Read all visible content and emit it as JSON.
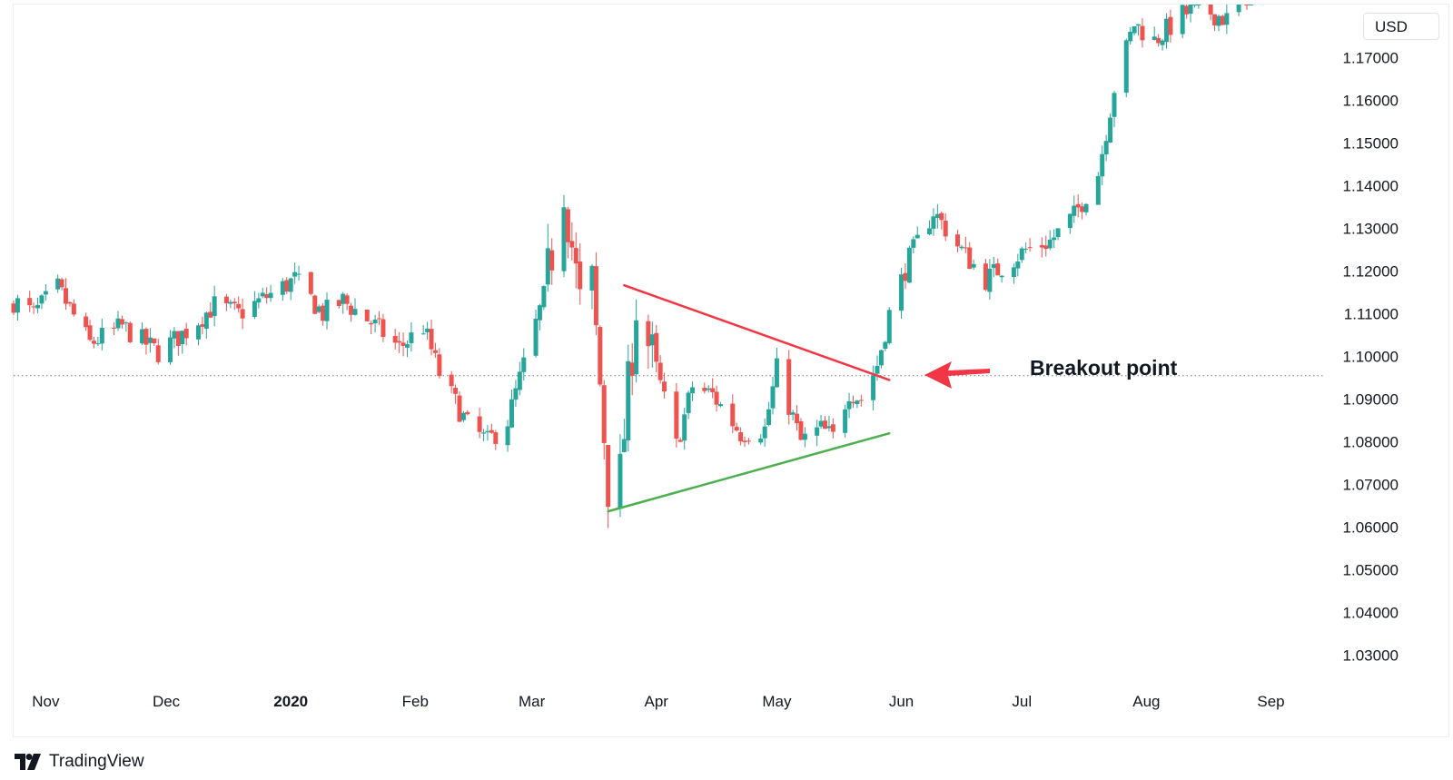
{
  "chart_data": {
    "type": "candlestick",
    "currency": "USD",
    "x_tick_labels": [
      "Nov",
      "Dec",
      "2020",
      "Feb",
      "Mar",
      "Apr",
      "May",
      "Jun",
      "Jul",
      "Aug",
      "Sep"
    ],
    "x_tick_bold": [
      false,
      false,
      true,
      false,
      false,
      false,
      false,
      false,
      false,
      false,
      false
    ],
    "y_tick_labels": [
      "1.17000",
      "1.16000",
      "1.15000",
      "1.14000",
      "1.13000",
      "1.12000",
      "1.11000",
      "1.10000",
      "1.09000",
      "1.08000",
      "1.07000",
      "1.06000",
      "1.05000",
      "1.04000",
      "1.03000"
    ],
    "y_ticks": [
      1.17,
      1.16,
      1.15,
      1.14,
      1.13,
      1.12,
      1.11,
      1.1,
      1.09,
      1.08,
      1.07,
      1.06,
      1.05,
      1.04,
      1.03
    ],
    "ylim": [
      1.0235,
      1.1825
    ],
    "price_line": 1.0955,
    "close_path": [
      [
        "2019-10-24",
        1.113
      ],
      [
        "2019-10-29",
        1.11
      ],
      [
        "2019-11-04",
        1.116
      ],
      [
        "2019-11-12",
        1.103
      ],
      [
        "2019-11-20",
        1.107
      ],
      [
        "2019-11-29",
        1.101
      ],
      [
        "2019-12-06",
        1.106
      ],
      [
        "2019-12-13",
        1.112
      ],
      [
        "2019-12-19",
        1.11
      ],
      [
        "2019-12-26",
        1.114
      ],
      [
        "2020-01-02",
        1.118
      ],
      [
        "2020-01-09",
        1.11
      ],
      [
        "2020-01-14",
        1.113
      ],
      [
        "2020-01-21",
        1.108
      ],
      [
        "2020-01-28",
        1.102
      ],
      [
        "2020-02-03",
        1.107
      ],
      [
        "2020-02-07",
        1.096
      ],
      [
        "2020-02-14",
        1.084
      ],
      [
        "2020-02-19",
        1.08
      ],
      [
        "2020-02-24",
        1.085
      ],
      [
        "2020-02-28",
        1.098
      ],
      [
        "2020-03-04",
        1.114
      ],
      [
        "2020-03-09",
        1.14
      ],
      [
        "2020-03-13",
        1.112
      ],
      [
        "2020-03-16",
        1.117
      ],
      [
        "2020-03-20",
        1.07
      ],
      [
        "2020-03-23",
        1.072
      ],
      [
        "2020-03-27",
        1.112
      ],
      [
        "2020-04-01",
        1.097
      ],
      [
        "2020-04-06",
        1.079
      ],
      [
        "2020-04-10",
        1.093
      ],
      [
        "2020-04-15",
        1.091
      ],
      [
        "2020-04-22",
        1.082
      ],
      [
        "2020-04-28",
        1.083
      ],
      [
        "2020-05-01",
        1.097
      ],
      [
        "2020-05-07",
        1.08
      ],
      [
        "2020-05-12",
        1.083
      ],
      [
        "2020-05-15",
        1.081
      ],
      [
        "2020-05-19",
        1.092
      ],
      [
        "2020-05-22",
        1.09
      ],
      [
        "2020-05-26",
        1.098
      ],
      [
        "2020-05-29",
        1.11
      ],
      [
        "2020-06-03",
        1.123
      ],
      [
        "2020-06-09",
        1.134
      ],
      [
        "2020-06-15",
        1.126
      ],
      [
        "2020-06-22",
        1.118
      ],
      [
        "2020-06-26",
        1.121
      ],
      [
        "2020-07-02",
        1.125
      ],
      [
        "2020-07-08",
        1.127
      ],
      [
        "2020-07-14",
        1.133
      ],
      [
        "2020-07-20",
        1.143
      ],
      [
        "2020-07-24",
        1.163
      ],
      [
        "2020-07-29",
        1.178
      ],
      [
        "2020-08-03",
        1.174
      ],
      [
        "2020-08-10",
        1.18
      ],
      [
        "2020-08-14",
        1.182
      ],
      [
        "2020-08-21",
        1.179
      ],
      [
        "2020-08-31",
        1.191
      ],
      [
        "2020-09-03",
        1.184
      ]
    ],
    "trendlines": [
      {
        "role": "resistance",
        "color": "#f23645",
        "points": [
          [
            "2020-03-24",
            1.1167
          ],
          [
            "2020-05-29",
            1.0945
          ]
        ]
      },
      {
        "role": "support",
        "color": "#4caf50",
        "points": [
          [
            "2020-03-20",
            1.0637
          ],
          [
            "2020-05-29",
            1.082
          ]
        ]
      }
    ],
    "annotation": {
      "text": "Breakout point",
      "arrow_color": "#f23645"
    },
    "colors": {
      "up": "#26a69a",
      "down": "#ef5350",
      "axis_text": "#131722",
      "grid": "#eceef2",
      "price_line": "#787b86"
    }
  },
  "branding": {
    "name": "TradingView"
  }
}
